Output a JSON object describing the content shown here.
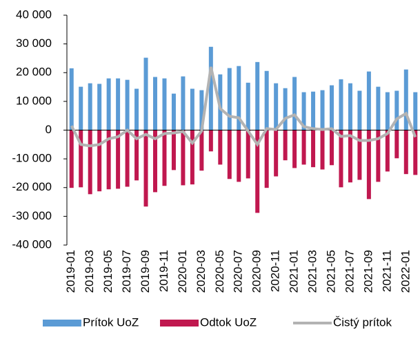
{
  "chart_data": {
    "type": "bar-line",
    "categories": [
      "2019-01",
      null,
      "2019-03",
      null,
      "2019-05",
      null,
      "2019-07",
      null,
      "2019-09",
      null,
      "2019-11",
      null,
      "2020-01",
      null,
      "2020-03",
      null,
      "2020-05",
      null,
      "2020-07",
      null,
      "2020-09",
      null,
      "2020-11",
      null,
      "2021-01",
      null,
      "2021-03",
      null,
      "2021-05",
      null,
      "2021-07",
      null,
      "2021-09",
      null,
      "2021-11",
      null,
      "2022-01",
      null
    ],
    "series": [
      {
        "name": "Prítok UoZ",
        "color": "#5b9bd5",
        "kind": "bar",
        "values": [
          21500,
          15100,
          16300,
          16100,
          18000,
          18000,
          17500,
          14400,
          25200,
          18500,
          18000,
          12700,
          18700,
          14400,
          13900,
          29000,
          19400,
          21600,
          22300,
          16500,
          23700,
          20600,
          16300,
          14600,
          18500,
          13200,
          13400,
          13900,
          15600,
          17700,
          16300,
          13700,
          20400,
          15100,
          13200,
          13700,
          21100,
          13200
        ]
      },
      {
        "name": "Odtok UoZ",
        "color": "#c0184f",
        "kind": "bar",
        "values": [
          -20100,
          -19900,
          -22300,
          -21300,
          -20600,
          -20400,
          -19700,
          -17500,
          -26600,
          -21600,
          -19400,
          -13900,
          -19200,
          -18900,
          -14100,
          -7400,
          -12000,
          -17000,
          -18000,
          -16800,
          -28800,
          -20100,
          -16100,
          -10500,
          -13200,
          -12000,
          -12900,
          -13700,
          -12200,
          -19900,
          -18200,
          -17300,
          -24000,
          -18000,
          -14400,
          -9800,
          -15300,
          -15600
        ]
      },
      {
        "name": "Čistý prítok",
        "color": "#b3b3b3",
        "kind": "line",
        "values": [
          1500,
          -5000,
          -5500,
          -5000,
          -3000,
          -2300,
          0,
          -3000,
          -1500,
          -3000,
          -1200,
          -1000,
          -500,
          -4500,
          -300,
          22000,
          7500,
          4800,
          4300,
          -300,
          -5000,
          500,
          200,
          4100,
          5300,
          1200,
          500,
          200,
          500,
          -2200,
          -1900,
          -3600,
          -3600,
          -3000,
          -1200,
          3900,
          5800,
          -2400
        ]
      }
    ],
    "ylim": [
      -40000,
      40000
    ],
    "yticks": [
      {
        "value": -40000,
        "label": "-40 000"
      },
      {
        "value": -30000,
        "label": "-30 000"
      },
      {
        "value": -20000,
        "label": "-20 000"
      },
      {
        "value": -10000,
        "label": "-10 000"
      },
      0,
      {
        "value": 10000,
        "label": "10 000"
      },
      {
        "value": 20000,
        "label": "20 000"
      },
      {
        "value": 30000,
        "label": "30 000"
      },
      {
        "value": 40000,
        "label": "40 000"
      }
    ],
    "legend": "bottom"
  }
}
